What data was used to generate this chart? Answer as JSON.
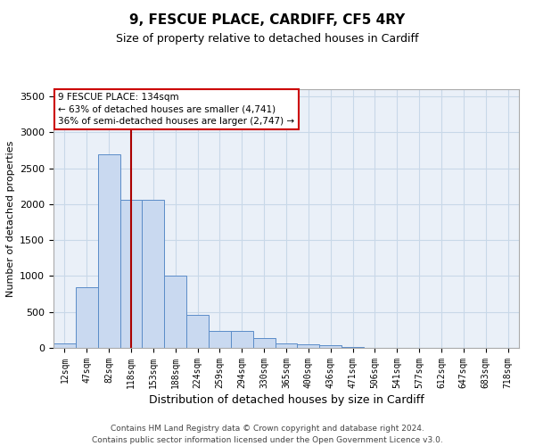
{
  "title": "9, FESCUE PLACE, CARDIFF, CF5 4RY",
  "subtitle": "Size of property relative to detached houses in Cardiff",
  "xlabel": "Distribution of detached houses by size in Cardiff",
  "ylabel": "Number of detached properties",
  "footer_line1": "Contains HM Land Registry data © Crown copyright and database right 2024.",
  "footer_line2": "Contains public sector information licensed under the Open Government Licence v3.0.",
  "bin_labels": [
    "12sqm",
    "47sqm",
    "82sqm",
    "118sqm",
    "153sqm",
    "188sqm",
    "224sqm",
    "259sqm",
    "294sqm",
    "330sqm",
    "365sqm",
    "400sqm",
    "436sqm",
    "471sqm",
    "506sqm",
    "541sqm",
    "577sqm",
    "612sqm",
    "647sqm",
    "683sqm",
    "718sqm"
  ],
  "bar_values": [
    60,
    850,
    2700,
    2060,
    2055,
    1000,
    455,
    230,
    230,
    135,
    65,
    55,
    35,
    15,
    5,
    5,
    3,
    0,
    0,
    0,
    0
  ],
  "bar_color": "#c9d9f0",
  "bar_edge_color": "#5b8cc8",
  "vline_x": 3.0,
  "vline_color": "#aa0000",
  "ylim": [
    0,
    3600
  ],
  "yticks": [
    0,
    500,
    1000,
    1500,
    2000,
    2500,
    3000,
    3500
  ],
  "annotation_text": "9 FESCUE PLACE: 134sqm\n← 63% of detached houses are smaller (4,741)\n36% of semi-detached houses are larger (2,747) →",
  "annotation_box_color": "#ffffff",
  "annotation_box_edge": "#cc0000",
  "grid_color": "#c8d8e8",
  "bg_color": "#eaf0f8",
  "title_fontsize": 11,
  "subtitle_fontsize": 9,
  "ylabel_fontsize": 8,
  "xlabel_fontsize": 9,
  "footer_fontsize": 6.5,
  "tick_fontsize": 8,
  "xtick_fontsize": 7
}
